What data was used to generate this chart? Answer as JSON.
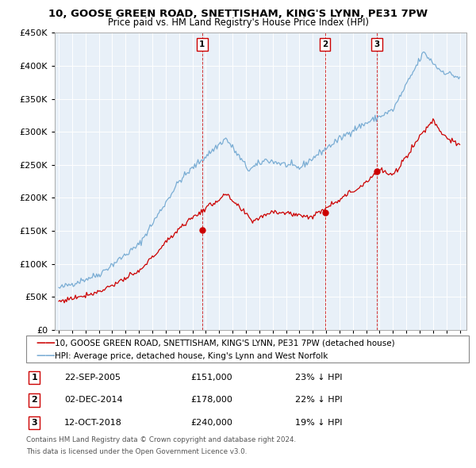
{
  "title": "10, GOOSE GREEN ROAD, SNETTISHAM, KING'S LYNN, PE31 7PW",
  "subtitle": "Price paid vs. HM Land Registry's House Price Index (HPI)",
  "sale_label": "10, GOOSE GREEN ROAD, SNETTISHAM, KING'S LYNN, PE31 7PW (detached house)",
  "hpi_label": "HPI: Average price, detached house, King's Lynn and West Norfolk",
  "sales": [
    {
      "num": 1,
      "date": "22-SEP-2005",
      "price": 151000,
      "year": 2005.73,
      "pct": "23% ↓ HPI"
    },
    {
      "num": 2,
      "date": "02-DEC-2014",
      "price": 178000,
      "year": 2014.92,
      "pct": "22% ↓ HPI"
    },
    {
      "num": 3,
      "date": "12-OCT-2018",
      "price": 240000,
      "year": 2018.78,
      "pct": "19% ↓ HPI"
    }
  ],
  "footnote1": "Contains HM Land Registry data © Crown copyright and database right 2024.",
  "footnote2": "This data is licensed under the Open Government Licence v3.0.",
  "ylim": [
    0,
    450000
  ],
  "xlim_start": 1994.7,
  "xlim_end": 2025.5,
  "sale_color": "#cc0000",
  "hpi_color": "#7aadd4",
  "background_color": "#ffffff",
  "plot_bg_color": "#e8f0f8",
  "grid_color": "#ffffff"
}
